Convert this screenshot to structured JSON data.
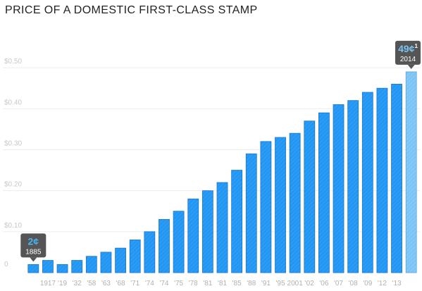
{
  "title": "PRICE OF A DOMESTIC FIRST-CLASS STAMP",
  "chart_data": {
    "type": "bar",
    "title": "PRICE OF A DOMESTIC FIRST-CLASS STAMP",
    "xlabel": "",
    "ylabel": "",
    "ylim": [
      0,
      0.55
    ],
    "y_ticks": [
      {
        "value": 0.1,
        "label": "$0.10"
      },
      {
        "value": 0.2,
        "label": "$0.20"
      },
      {
        "value": 0.3,
        "label": "$0.30"
      },
      {
        "value": 0.4,
        "label": "$0.40"
      },
      {
        "value": 0.5,
        "label": "$0.50"
      }
    ],
    "y_zero_label": "0",
    "grid": true,
    "categories": [
      "",
      "1917",
      "'19",
      "'32",
      "'58",
      "'63",
      "'68",
      "'71",
      "'74",
      "'74",
      "'75",
      "'78",
      "'81",
      "'81",
      "'85",
      "'88",
      "'91",
      "'95",
      "2001",
      "'02",
      "'06",
      "'07",
      "'08",
      "'09",
      "'12",
      "'13",
      ""
    ],
    "values": [
      0.02,
      0.03,
      0.02,
      0.03,
      0.04,
      0.05,
      0.06,
      0.08,
      0.1,
      0.13,
      0.15,
      0.18,
      0.2,
      0.22,
      0.25,
      0.29,
      0.32,
      0.33,
      0.34,
      0.37,
      0.39,
      0.41,
      0.42,
      0.44,
      0.45,
      0.46,
      0.49
    ],
    "bar_color": "#2196f3",
    "highlight_color": "#7cc4f5",
    "callouts": [
      {
        "bar_index": 0,
        "value_label": "2¢",
        "year_label": "1885"
      },
      {
        "bar_index": 26,
        "value_label": "49¢",
        "year_label": "2014",
        "superscript": "1"
      }
    ]
  }
}
